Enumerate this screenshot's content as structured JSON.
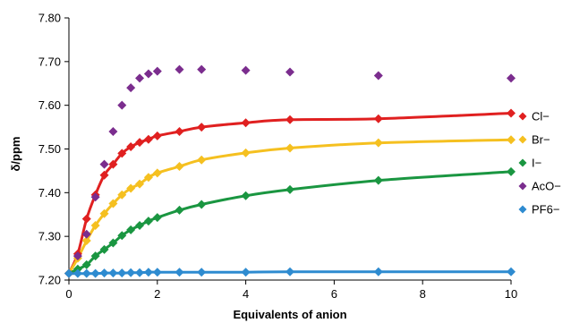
{
  "chart_data": {
    "type": "scatter",
    "xlabel": "Equivalents of anion",
    "ylabel": "δ/ppm",
    "xlim": [
      0,
      10
    ],
    "ylim": [
      7.2,
      7.8
    ],
    "xticks": [
      0,
      2,
      4,
      6,
      8,
      10
    ],
    "yticks": [
      7.2,
      7.3,
      7.4,
      7.5,
      7.6,
      7.7,
      7.8
    ],
    "ytick_labels": [
      "7.20",
      "7.30",
      "7.40",
      "7.50",
      "7.60",
      "7.70",
      "7.80"
    ],
    "grid": false,
    "legend_position": "right",
    "series": [
      {
        "name": "Cl−",
        "color": "#e02020",
        "marker": "diamond",
        "fit_line": true,
        "x": [
          0,
          0.2,
          0.4,
          0.6,
          0.8,
          1.0,
          1.2,
          1.4,
          1.6,
          1.8,
          2.0,
          2.5,
          3.0,
          4.0,
          5.0,
          7.0,
          10.0
        ],
        "y": [
          7.215,
          7.26,
          7.34,
          7.395,
          7.44,
          7.465,
          7.49,
          7.505,
          7.515,
          7.522,
          7.53,
          7.54,
          7.55,
          7.56,
          7.567,
          7.569,
          7.582
        ]
      },
      {
        "name": "Br−",
        "color": "#f5c020",
        "marker": "diamond",
        "fit_line": true,
        "x": [
          0,
          0.2,
          0.4,
          0.6,
          0.8,
          1.0,
          1.2,
          1.4,
          1.6,
          1.8,
          2.0,
          2.5,
          3.0,
          4.0,
          5.0,
          7.0,
          10.0
        ],
        "y": [
          7.215,
          7.25,
          7.29,
          7.325,
          7.352,
          7.375,
          7.395,
          7.41,
          7.42,
          7.435,
          7.445,
          7.46,
          7.475,
          7.491,
          7.502,
          7.514,
          7.521
        ]
      },
      {
        "name": "I−",
        "color": "#1a9641",
        "marker": "diamond",
        "fit_line": true,
        "x": [
          0,
          0.2,
          0.4,
          0.6,
          0.8,
          1.0,
          1.2,
          1.4,
          1.6,
          1.8,
          2.0,
          2.5,
          3.0,
          4.0,
          5.0,
          7.0,
          10.0
        ],
        "y": [
          7.215,
          7.225,
          7.235,
          7.255,
          7.27,
          7.285,
          7.302,
          7.315,
          7.325,
          7.335,
          7.343,
          7.36,
          7.373,
          7.393,
          7.407,
          7.428,
          7.448
        ]
      },
      {
        "name": "AcO−",
        "color": "#7b2d8e",
        "marker": "diamond",
        "fit_line": false,
        "x": [
          0,
          0.2,
          0.4,
          0.6,
          0.8,
          1.0,
          1.2,
          1.4,
          1.6,
          1.8,
          2.0,
          2.5,
          3.0,
          4.0,
          5.0,
          7.0,
          10.0
        ],
        "y": [
          7.215,
          7.255,
          7.305,
          7.39,
          7.465,
          7.54,
          7.6,
          7.64,
          7.662,
          7.672,
          7.678,
          7.682,
          7.682,
          7.68,
          7.676,
          7.668,
          7.662
        ]
      },
      {
        "name": "PF6−",
        "color": "#2e8bd0",
        "marker": "diamond",
        "fit_line": true,
        "x": [
          0,
          0.2,
          0.4,
          0.6,
          0.8,
          1.0,
          1.2,
          1.4,
          1.6,
          1.8,
          2.0,
          2.5,
          3.0,
          4.0,
          5.0,
          7.0,
          10.0
        ],
        "y": [
          7.215,
          7.215,
          7.215,
          7.215,
          7.216,
          7.216,
          7.216,
          7.217,
          7.217,
          7.218,
          7.218,
          7.218,
          7.218,
          7.218,
          7.219,
          7.219,
          7.219
        ]
      }
    ]
  }
}
